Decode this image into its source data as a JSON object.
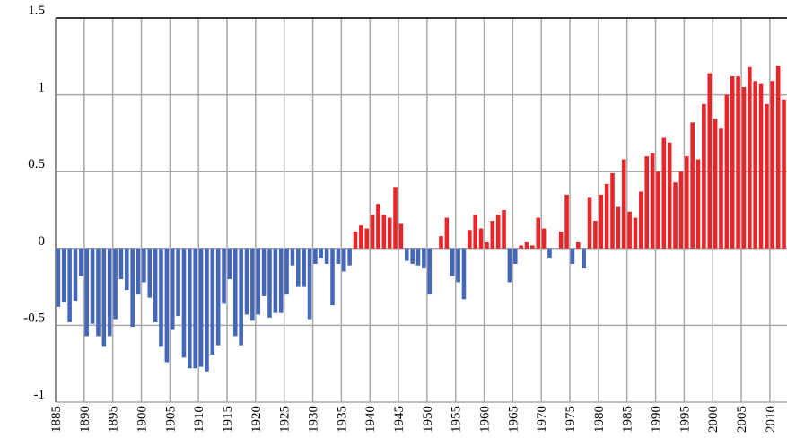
{
  "chart_data": {
    "type": "bar",
    "x": [
      1885,
      1886,
      1887,
      1888,
      1889,
      1890,
      1891,
      1892,
      1893,
      1894,
      1895,
      1896,
      1897,
      1898,
      1899,
      1900,
      1901,
      1902,
      1903,
      1904,
      1905,
      1906,
      1907,
      1908,
      1909,
      1910,
      1911,
      1912,
      1913,
      1914,
      1915,
      1916,
      1917,
      1918,
      1919,
      1920,
      1921,
      1922,
      1923,
      1924,
      1925,
      1926,
      1927,
      1928,
      1929,
      1930,
      1931,
      1932,
      1933,
      1934,
      1935,
      1936,
      1937,
      1938,
      1939,
      1940,
      1941,
      1942,
      1943,
      1944,
      1945,
      1946,
      1947,
      1948,
      1949,
      1950,
      1951,
      1952,
      1953,
      1954,
      1955,
      1956,
      1957,
      1958,
      1959,
      1960,
      1961,
      1962,
      1963,
      1964,
      1965,
      1966,
      1967,
      1968,
      1969,
      1970,
      1971,
      1972,
      1973,
      1974,
      1975,
      1976,
      1977,
      1978,
      1979,
      1980,
      1981,
      1982,
      1983,
      1984,
      1985,
      1986,
      1987,
      1988,
      1989,
      1990,
      1991,
      1992,
      1993,
      1994,
      1995,
      1996,
      1997,
      1998,
      1999,
      2000,
      2001,
      2002,
      2003,
      2004,
      2005,
      2006,
      2007,
      2008,
      2009,
      2010,
      2011,
      2012
    ],
    "values": [
      -0.38,
      -0.35,
      -0.48,
      -0.34,
      -0.18,
      -0.57,
      -0.49,
      -0.57,
      -0.64,
      -0.57,
      -0.46,
      -0.2,
      -0.27,
      -0.51,
      -0.3,
      -0.22,
      -0.32,
      -0.48,
      -0.64,
      -0.74,
      -0.53,
      -0.44,
      -0.71,
      -0.78,
      -0.78,
      -0.77,
      -0.8,
      -0.69,
      -0.63,
      -0.36,
      -0.2,
      -0.57,
      -0.63,
      -0.43,
      -0.47,
      -0.43,
      -0.31,
      -0.45,
      -0.42,
      -0.42,
      -0.3,
      -0.11,
      -0.25,
      -0.25,
      -0.46,
      -0.1,
      -0.06,
      -0.1,
      -0.37,
      -0.1,
      -0.15,
      -0.11,
      0.11,
      0.15,
      0.13,
      0.22,
      0.29,
      0.22,
      0.2,
      0.4,
      0.16,
      -0.08,
      -0.1,
      -0.11,
      -0.13,
      -0.3,
      0,
      0.08,
      0.2,
      -0.18,
      -0.22,
      -0.33,
      0.12,
      0.22,
      0.13,
      0.04,
      0.18,
      0.22,
      0.25,
      -0.22,
      -0.1,
      0.02,
      0.04,
      0.02,
      0.2,
      0.13,
      -0.06,
      0,
      0.11,
      0.35,
      -0.1,
      0.04,
      -0.13,
      0.33,
      0.18,
      0.35,
      0.42,
      0.49,
      0.27,
      0.58,
      0.24,
      0.2,
      0.37,
      0.6,
      0.62,
      0.5,
      0.72,
      0.69,
      0.43,
      0.5,
      0.6,
      0.82,
      0.58,
      0.94,
      1.14,
      0.84,
      0.78,
      1.0,
      1.12,
      1.12,
      1.05,
      1.18,
      1.09,
      1.07,
      0.94,
      1.09,
      1.19,
      0.97
    ],
    "positive_color": "#e8262a",
    "negative_color": "#4467b9",
    "xlim": [
      1885,
      2013
    ],
    "ylim": [
      -1,
      1.5
    ],
    "xticks": [
      1885,
      1890,
      1895,
      1900,
      1905,
      1910,
      1915,
      1920,
      1925,
      1930,
      1935,
      1940,
      1945,
      1950,
      1955,
      1960,
      1965,
      1970,
      1975,
      1980,
      1985,
      1990,
      1995,
      2000,
      2005,
      2010
    ],
    "yticks": [
      -1,
      -0.5,
      0,
      0.5,
      1,
      1.5
    ],
    "grid": true
  }
}
